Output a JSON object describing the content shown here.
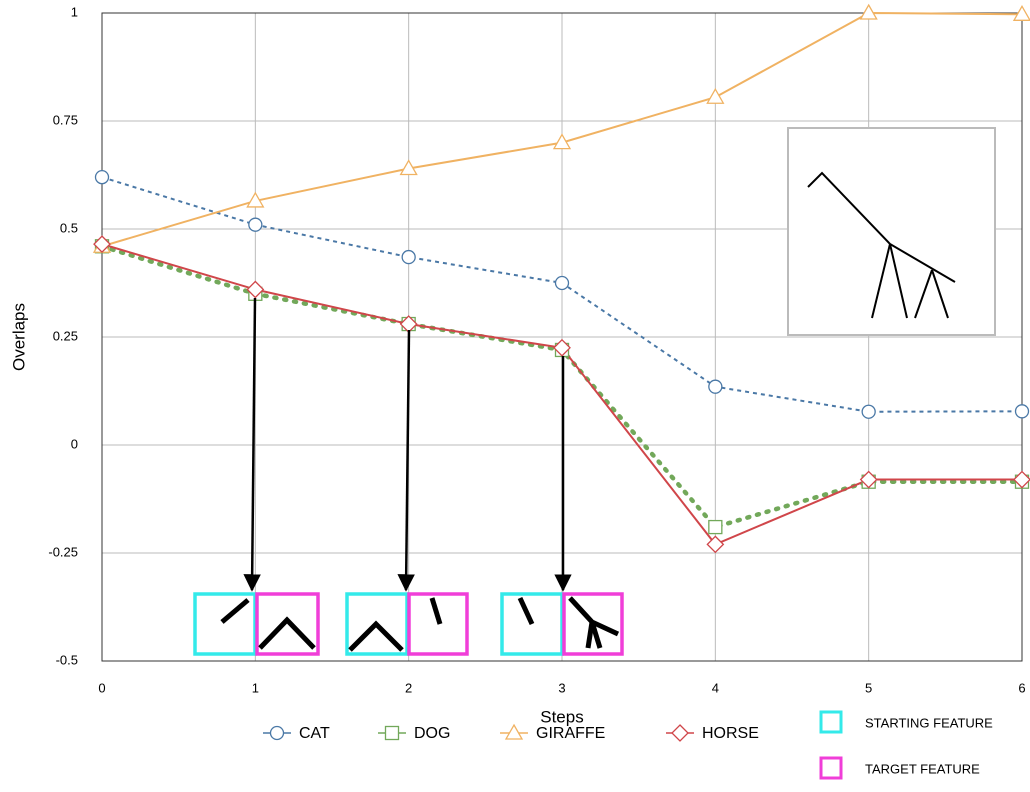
{
  "chart_data": {
    "type": "line",
    "x_label": "Steps",
    "y_label": "Overlaps",
    "x": [
      0,
      1,
      2,
      3,
      4,
      5,
      6
    ],
    "xlim": [
      0,
      6
    ],
    "xticks": [
      0,
      1,
      2,
      3,
      4,
      5,
      6
    ],
    "ylim": [
      -0.5,
      1
    ],
    "yticks": [
      -0.5,
      -0.25,
      0,
      0.25,
      0.5,
      0.75,
      1
    ],
    "grid": true,
    "series": [
      {
        "name": "CAT",
        "color": "#4a78a6",
        "line_style": "dashed",
        "marker": "circle",
        "values": [
          0.62,
          0.51,
          0.435,
          0.375,
          0.135,
          0.077,
          0.078
        ]
      },
      {
        "name": "DOG",
        "color": "#72a85a",
        "line_style": "dotted",
        "marker": "square",
        "values": [
          0.46,
          0.35,
          0.28,
          0.22,
          -0.19,
          -0.085,
          -0.085
        ]
      },
      {
        "name": "GIRAFFE",
        "color": "#f0b262",
        "line_style": "solid",
        "marker": "triangle",
        "values": [
          0.46,
          0.565,
          0.64,
          0.7,
          0.805,
          1.0,
          0.997
        ]
      },
      {
        "name": "HORSE",
        "color": "#d0464a",
        "line_style": "solid",
        "marker": "diamond",
        "values": [
          0.465,
          0.36,
          0.28,
          0.225,
          -0.23,
          -0.08,
          -0.08
        ]
      }
    ],
    "feature_legend": [
      {
        "label": "STARTING FEATURE",
        "color": "#33eaea"
      },
      {
        "label": "TARGET FEATURE",
        "color": "#f03ed8"
      }
    ]
  }
}
